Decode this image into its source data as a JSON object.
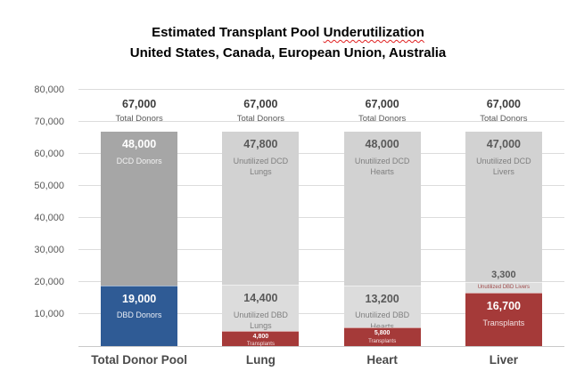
{
  "title": {
    "line1_prefix": "Estimated Transplant Pool ",
    "line1_underlined": "Underutilization",
    "line2": "United States, Canada, European Union, Australia"
  },
  "colors": {
    "blue": "#2f5b95",
    "dark_gray": "#a6a6a6",
    "light_gray_dcd": "#d2d2d2",
    "light_gray_dbd": "#dcdcdc",
    "dark_red": "#a53a39",
    "grid": "#dcdcdc",
    "axis_text": "#595959",
    "squiggle_red": "#e02020",
    "white_text": "#ffffff"
  },
  "chart_data": {
    "type": "bar",
    "stacked": true,
    "grid": true,
    "legend": "none",
    "title": "Estimated Transplant Pool Underutilization — United States, Canada, European Union, Australia",
    "xlabel": "",
    "ylabel": "",
    "ylim": [
      0,
      80000
    ],
    "ytick_values": [
      10000,
      20000,
      30000,
      40000,
      50000,
      60000,
      70000,
      80000
    ],
    "ytick_labels": [
      "10,000",
      "20,000",
      "30,000",
      "40,000",
      "50,000",
      "60,000",
      "70,000",
      "80,000"
    ],
    "categories": [
      "Total Donor Pool",
      "Lung",
      "Heart",
      "Liver"
    ],
    "bars": [
      {
        "category": "Total Donor Pool",
        "total": 67000,
        "total_value_label": "67,000",
        "total_caption": "Total Donors",
        "segments": [
          {
            "value": 48000,
            "value_label": "48,000",
            "label": "DCD Donors",
            "bg": "#a6a6a6",
            "fg": "#ffffff",
            "fg2": "#f2f2f2"
          },
          {
            "value": 19000,
            "value_label": "19,000",
            "label": "DBD Donors",
            "bg": "#2f5b95",
            "fg": "#ffffff",
            "fg2": "#e8edf5"
          }
        ]
      },
      {
        "category": "Lung",
        "total": 67000,
        "total_value_label": "67,000",
        "total_caption": "Total Donors",
        "segments": [
          {
            "value": 47800,
            "value_label": "47,800",
            "label": "Unutilized DCD Lungs",
            "bg": "#d2d2d2",
            "fg": "#595959",
            "fg2": "#7f7f7f"
          },
          {
            "value": 14400,
            "value_label": "14,400",
            "label": "Unutilized DBD Lungs",
            "bg": "#dcdcdc",
            "fg": "#595959",
            "fg2": "#7f7f7f"
          },
          {
            "value": 4800,
            "value_label": "4,800",
            "label": "Transplants",
            "bg": "#a53a39",
            "fg": "#ffffff",
            "fg2": "#f3e2e2"
          }
        ]
      },
      {
        "category": "Heart",
        "total": 67000,
        "total_value_label": "67,000",
        "total_caption": "Total Donors",
        "segments": [
          {
            "value": 48000,
            "value_label": "48,000",
            "label": "Unutilized DCD Hearts",
            "bg": "#d2d2d2",
            "fg": "#595959",
            "fg2": "#7f7f7f"
          },
          {
            "value": 13200,
            "value_label": "13,200",
            "label": "Unutilized DBD Hearts",
            "bg": "#dcdcdc",
            "fg": "#595959",
            "fg2": "#7f7f7f"
          },
          {
            "value": 5800,
            "value_label": "5,800",
            "label": "Transplants",
            "bg": "#a53a39",
            "fg": "#ffffff",
            "fg2": "#f3e2e2"
          }
        ]
      },
      {
        "category": "Liver",
        "total": 67000,
        "total_value_label": "67,000",
        "total_caption": "Total Donors",
        "segments": [
          {
            "value": 47000,
            "value_label": "47,000",
            "label": "Unutilized DCD Livers",
            "bg": "#d2d2d2",
            "fg": "#595959",
            "fg2": "#7f7f7f"
          },
          {
            "value": 3300,
            "value_label": "3,300",
            "label": "Unutilized DBD Livers",
            "bg": "#dedede",
            "fg": "#595959",
            "fg2": "#9e4a4a"
          },
          {
            "value": 16700,
            "value_label": "16,700",
            "label": "Transplants",
            "bg": "#a53a39",
            "fg": "#ffffff",
            "fg2": "#f3e2e2"
          }
        ]
      }
    ]
  }
}
